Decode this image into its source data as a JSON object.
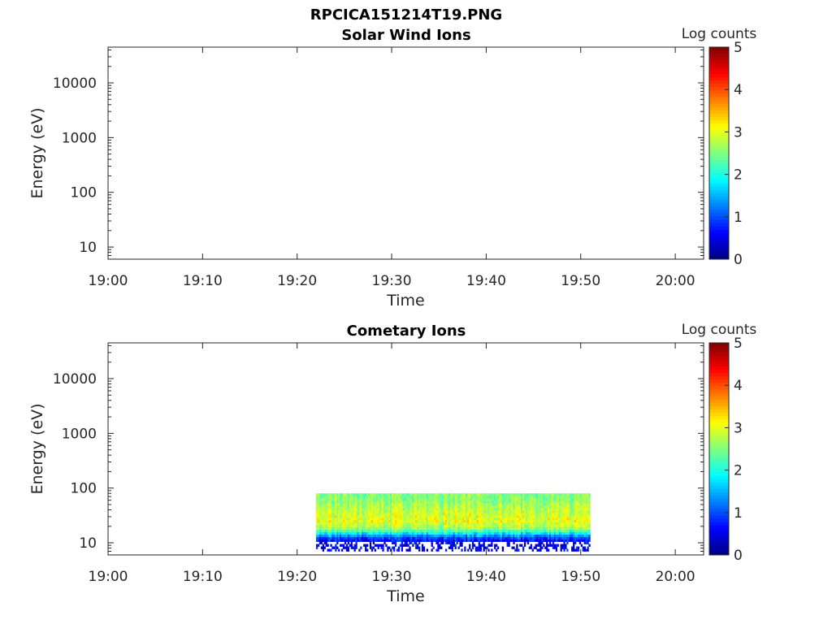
{
  "figure": {
    "filename": "RPCICA151214T19.PNG"
  },
  "colormap": "jet",
  "chart_data": [
    {
      "type": "heatmap",
      "title": "Solar Wind Ions",
      "xlabel": "Time",
      "ylabel": "Energy (eV)",
      "x_ticks": [
        "19:00",
        "19:10",
        "19:20",
        "19:30",
        "19:40",
        "19:50",
        "20:00"
      ],
      "x_range": [
        "19:00",
        "20:03"
      ],
      "y_scale": "log",
      "y_ticks": [
        "10",
        "100",
        "1000",
        "10000"
      ],
      "y_range": [
        6,
        45000
      ],
      "colorbar": {
        "label": "Log counts",
        "range": [
          0,
          5
        ],
        "ticks": [
          "0",
          "1",
          "2",
          "3",
          "4",
          "5"
        ]
      },
      "data_present": false
    },
    {
      "type": "heatmap",
      "title": "Cometary Ions",
      "xlabel": "Time",
      "ylabel": "Energy (eV)",
      "x_ticks": [
        "19:00",
        "19:10",
        "19:20",
        "19:30",
        "19:40",
        "19:50",
        "20:00"
      ],
      "x_range": [
        "19:00",
        "20:03"
      ],
      "y_scale": "log",
      "y_ticks": [
        "10",
        "100",
        "1000",
        "10000"
      ],
      "y_range": [
        6,
        45000
      ],
      "colorbar": {
        "label": "Log counts",
        "range": [
          0,
          5
        ],
        "ticks": [
          "0",
          "1",
          "2",
          "3",
          "4",
          "5"
        ]
      },
      "data_present": true,
      "data_time_start": "19:22",
      "data_time_end": "19:51",
      "data_energy_max": 80,
      "data_energy_min": 7,
      "typical_log_counts": [
        {
          "energy": 70,
          "log_counts": 2.5
        },
        {
          "energy": 40,
          "log_counts": 2.8
        },
        {
          "energy": 25,
          "log_counts": 3.0
        },
        {
          "energy": 18,
          "log_counts": 2.6
        },
        {
          "energy": 15,
          "log_counts": 1.8
        },
        {
          "energy": 12,
          "log_counts": 0.8
        },
        {
          "energy": 9,
          "log_counts": 0.5
        }
      ]
    }
  ]
}
